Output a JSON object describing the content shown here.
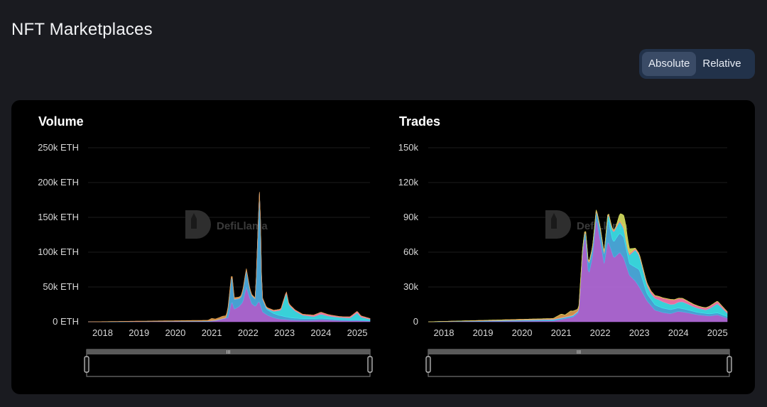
{
  "page": {
    "title": "NFT Marketplaces"
  },
  "toggle": {
    "options": [
      "Absolute",
      "Relative"
    ],
    "selected": "Absolute"
  },
  "watermark": "DefiLlama",
  "slider_handle_label": "III",
  "chart_data": [
    {
      "type": "area",
      "title": "Volume",
      "y_unit": "ETH",
      "y_ticks": [
        "0 ETH",
        "50k ETH",
        "100k ETH",
        "150k ETH",
        "200k ETH",
        "250k ETH"
      ],
      "ylim": [
        0,
        250000
      ],
      "x_ticks": [
        "2018",
        "2019",
        "2020",
        "2021",
        "2022",
        "2023",
        "2024",
        "2025"
      ],
      "xlim": [
        2017.6,
        2025.35
      ],
      "series_colors": [
        "#b86ee0",
        "#4fb3e8",
        "#3ee8f0",
        "#ff7ab0",
        "#e0a050"
      ],
      "series": [
        {
          "values": [
            [
              2017.6,
              0
            ],
            [
              2020.9,
              500
            ],
            [
              2021.1,
              1500
            ],
            [
              2021.3,
              4000
            ],
            [
              2021.45,
              6000
            ],
            [
              2021.55,
              30000
            ],
            [
              2021.62,
              18000
            ],
            [
              2021.75,
              22000
            ],
            [
              2021.85,
              28000
            ],
            [
              2021.95,
              50000
            ],
            [
              2022.02,
              38000
            ],
            [
              2022.1,
              26000
            ],
            [
              2022.2,
              22000
            ],
            [
              2022.3,
              30000
            ],
            [
              2022.4,
              14000
            ],
            [
              2022.55,
              9000
            ],
            [
              2022.7,
              6000
            ],
            [
              2022.85,
              4000
            ],
            [
              2023.0,
              3500
            ],
            [
              2023.2,
              2500
            ],
            [
              2023.5,
              2000
            ],
            [
              2023.8,
              2200
            ],
            [
              2024.0,
              3000
            ],
            [
              2024.2,
              2500
            ],
            [
              2024.5,
              1800
            ],
            [
              2024.8,
              1400
            ],
            [
              2025.0,
              1500
            ],
            [
              2025.35,
              1000
            ]
          ]
        },
        {
          "values": [
            [
              2017.6,
              0
            ],
            [
              2021.4,
              200
            ],
            [
              2021.55,
              40000
            ],
            [
              2021.62,
              14000
            ],
            [
              2021.8,
              10000
            ],
            [
              2021.95,
              25000
            ],
            [
              2022.05,
              12000
            ],
            [
              2022.2,
              10000
            ],
            [
              2022.32,
              170000
            ],
            [
              2022.38,
              20000
            ],
            [
              2022.5,
              8000
            ],
            [
              2022.7,
              6000
            ],
            [
              2022.9,
              5000
            ],
            [
              2023.0,
              4000
            ],
            [
              2023.2,
              3000
            ],
            [
              2023.5,
              2500
            ],
            [
              2024.0,
              2000
            ],
            [
              2024.5,
              1500
            ],
            [
              2025.0,
              1500
            ],
            [
              2025.35,
              800
            ]
          ]
        },
        {
          "values": [
            [
              2017.6,
              0
            ],
            [
              2022.4,
              500
            ],
            [
              2022.7,
              3000
            ],
            [
              2022.9,
              8000
            ],
            [
              2023.05,
              35000
            ],
            [
              2023.12,
              18000
            ],
            [
              2023.3,
              10000
            ],
            [
              2023.5,
              5000
            ],
            [
              2023.8,
              3000
            ],
            [
              2024.0,
              6000
            ],
            [
              2024.2,
              4000
            ],
            [
              2024.5,
              3000
            ],
            [
              2024.8,
              2500
            ],
            [
              2025.0,
              10000
            ],
            [
              2025.1,
              4000
            ],
            [
              2025.35,
              2000
            ]
          ]
        },
        {
          "values": [
            [
              2017.6,
              0
            ],
            [
              2022.0,
              500
            ],
            [
              2022.5,
              800
            ],
            [
              2023.0,
              1500
            ],
            [
              2023.5,
              1000
            ],
            [
              2024.0,
              2500
            ],
            [
              2024.3,
              1500
            ],
            [
              2024.6,
              1000
            ],
            [
              2025.0,
              2000
            ],
            [
              2025.35,
              800
            ]
          ]
        },
        {
          "values": [
            [
              2017.6,
              0
            ],
            [
              2020.9,
              800
            ],
            [
              2021.0,
              3000
            ],
            [
              2021.1,
              1500
            ],
            [
              2021.3,
              3000
            ],
            [
              2021.5,
              2000
            ],
            [
              2022.0,
              1000
            ],
            [
              2023.0,
              500
            ],
            [
              2025.35,
              200
            ]
          ]
        }
      ]
    },
    {
      "type": "area",
      "title": "Trades",
      "y_ticks": [
        "0",
        "30k",
        "60k",
        "90k",
        "120k",
        "150k"
      ],
      "ylim": [
        0,
        150000
      ],
      "x_ticks": [
        "2018",
        "2019",
        "2020",
        "2021",
        "2022",
        "2023",
        "2024",
        "2025"
      ],
      "xlim": [
        2017.6,
        2025.25
      ],
      "series_colors": [
        "#b86ee0",
        "#4fb3e8",
        "#3ee8f0",
        "#ff7ab0",
        "#e0a050",
        "#d8e060"
      ],
      "series": [
        {
          "values": [
            [
              2017.6,
              0
            ],
            [
              2020.8,
              800
            ],
            [
              2021.0,
              2000
            ],
            [
              2021.3,
              4000
            ],
            [
              2021.45,
              8000
            ],
            [
              2021.55,
              60000
            ],
            [
              2021.62,
              75000
            ],
            [
              2021.7,
              40000
            ],
            [
              2021.8,
              55000
            ],
            [
              2021.9,
              90000
            ],
            [
              2022.0,
              70000
            ],
            [
              2022.1,
              50000
            ],
            [
              2022.2,
              70000
            ],
            [
              2022.35,
              55000
            ],
            [
              2022.5,
              60000
            ],
            [
              2022.6,
              55000
            ],
            [
              2022.75,
              40000
            ],
            [
              2022.9,
              35000
            ],
            [
              2023.0,
              30000
            ],
            [
              2023.2,
              18000
            ],
            [
              2023.4,
              10000
            ],
            [
              2023.6,
              8000
            ],
            [
              2023.8,
              7000
            ],
            [
              2024.0,
              9000
            ],
            [
              2024.2,
              8000
            ],
            [
              2024.5,
              6000
            ],
            [
              2024.8,
              5000
            ],
            [
              2025.0,
              6000
            ],
            [
              2025.25,
              3000
            ]
          ]
        },
        {
          "values": [
            [
              2017.6,
              0
            ],
            [
              2021.5,
              1000
            ],
            [
              2021.7,
              8000
            ],
            [
              2021.9,
              6000
            ],
            [
              2022.0,
              10000
            ],
            [
              2022.1,
              8000
            ],
            [
              2022.2,
              20000
            ],
            [
              2022.3,
              12000
            ],
            [
              2022.4,
              15000
            ],
            [
              2022.6,
              18000
            ],
            [
              2022.75,
              10000
            ],
            [
              2022.9,
              12000
            ],
            [
              2023.0,
              15000
            ],
            [
              2023.2,
              6000
            ],
            [
              2023.5,
              4000
            ],
            [
              2024.0,
              3000
            ],
            [
              2024.5,
              2000
            ],
            [
              2025.25,
              1500
            ]
          ]
        },
        {
          "values": [
            [
              2017.6,
              0
            ],
            [
              2022.1,
              500
            ],
            [
              2022.3,
              8000
            ],
            [
              2022.5,
              10000
            ],
            [
              2022.7,
              5000
            ],
            [
              2022.9,
              15000
            ],
            [
              2023.0,
              12000
            ],
            [
              2023.15,
              8000
            ],
            [
              2023.3,
              5000
            ],
            [
              2023.5,
              6000
            ],
            [
              2023.7,
              5000
            ],
            [
              2023.9,
              4000
            ],
            [
              2024.1,
              6000
            ],
            [
              2024.4,
              4000
            ],
            [
              2024.7,
              3000
            ],
            [
              2025.0,
              8000
            ],
            [
              2025.25,
              3000
            ]
          ]
        },
        {
          "values": [
            [
              2017.6,
              0
            ],
            [
              2022.0,
              500
            ],
            [
              2023.0,
              1000
            ],
            [
              2023.4,
              2000
            ],
            [
              2023.8,
              4000
            ],
            [
              2024.0,
              3000
            ],
            [
              2024.3,
              2000
            ],
            [
              2024.6,
              1500
            ],
            [
              2025.0,
              2000
            ],
            [
              2025.25,
              1000
            ]
          ]
        },
        {
          "values": [
            [
              2017.6,
              0
            ],
            [
              2020.8,
              500
            ],
            [
              2021.0,
              3000
            ],
            [
              2021.1,
              1500
            ],
            [
              2021.25,
              4000
            ],
            [
              2021.4,
              2000
            ],
            [
              2021.6,
              1000
            ],
            [
              2022.0,
              800
            ],
            [
              2023.0,
              500
            ],
            [
              2025.25,
              200
            ]
          ]
        },
        {
          "values": [
            [
              2017.6,
              0
            ],
            [
              2022.4,
              0
            ],
            [
              2022.55,
              8000
            ],
            [
              2022.65,
              12000
            ],
            [
              2022.75,
              4000
            ],
            [
              2022.9,
              0
            ],
            [
              2025.25,
              0
            ]
          ]
        }
      ]
    }
  ]
}
